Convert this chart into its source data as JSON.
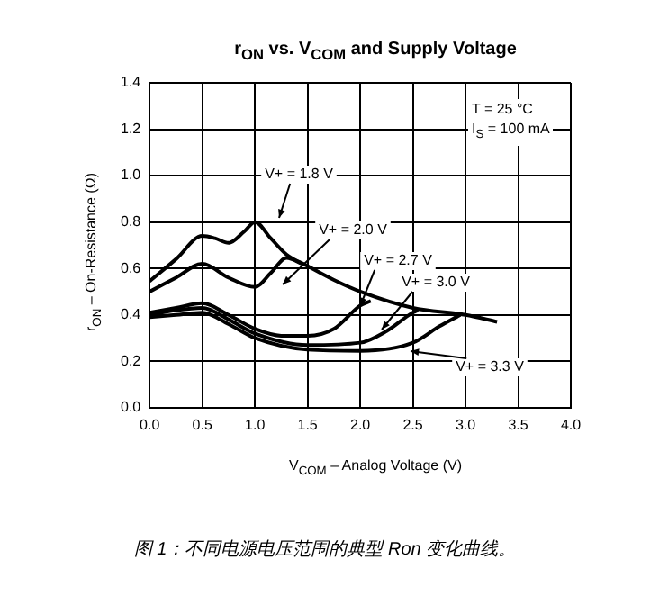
{
  "chart_data": {
    "type": "line",
    "title": "r$_{ON}$ vs. V$_{COM}$ and Supply Voltage",
    "xlabel": "V$_{COM}$ – Analog Voltage (V)",
    "ylabel": "r$_{ON}$ – On-Resistance (Ω)",
    "xlim": [
      0,
      4
    ],
    "xticks": [
      {
        "value": 0,
        "label": "0.0"
      },
      0.5,
      {
        "value": 1,
        "label": "1.0"
      },
      1.5,
      {
        "value": 2,
        "label": "2.0"
      },
      2.5,
      {
        "value": 3,
        "label": "3.0"
      },
      3.5,
      {
        "value": 4,
        "label": "4.0"
      }
    ],
    "ylim": [
      0,
      1.4
    ],
    "yticks": [
      {
        "value": 0,
        "label": "0.0"
      },
      0.2,
      0.4,
      0.6,
      0.8,
      {
        "value": 1,
        "label": "1.0"
      },
      1.2,
      1.4
    ],
    "grid": true,
    "legend": false,
    "marker": "none",
    "line_style": "solid",
    "annotations": [
      "T = 25 °C",
      "I$_{S}$ = 100 mA",
      "图 1：不同电源电压范围的典型 Ron 变化曲线。"
    ],
    "series": [
      {
        "name": "V+ = 1.8 V",
        "color": "#000000",
        "x": [
          0,
          0.25,
          0.5,
          0.62,
          0.75,
          0.9,
          1.0,
          1.15,
          1.3,
          1.5,
          1.75,
          2.0,
          2.5,
          3.0,
          3.3
        ],
        "values": [
          0.545,
          0.64,
          0.74,
          0.73,
          0.71,
          0.76,
          0.8,
          0.73,
          0.66,
          0.61,
          0.55,
          0.5,
          0.43,
          0.4,
          0.37
        ]
      },
      {
        "name": "V+ = 2.0 V",
        "color": "#000000",
        "x": [
          0,
          0.25,
          0.5,
          0.75,
          1.0,
          1.15,
          1.3,
          1.45
        ],
        "values": [
          0.5,
          0.56,
          0.62,
          0.56,
          0.52,
          0.58,
          0.645,
          0.62
        ]
      },
      {
        "name": "V+ = 2.7 V",
        "color": "#000000",
        "x": [
          0,
          0.25,
          0.5,
          0.75,
          1.0,
          1.25,
          1.5,
          1.75,
          2.0,
          2.1
        ],
        "values": [
          0.41,
          0.43,
          0.45,
          0.4,
          0.34,
          0.31,
          0.31,
          0.34,
          0.44,
          0.46
        ]
      },
      {
        "name": "V+ = 3.0 V",
        "color": "#000000",
        "x": [
          0,
          0.25,
          0.5,
          0.75,
          1.0,
          1.5,
          2.0,
          2.25,
          2.5,
          2.55
        ],
        "values": [
          0.4,
          0.42,
          0.43,
          0.38,
          0.32,
          0.27,
          0.28,
          0.33,
          0.41,
          0.42
        ]
      },
      {
        "name": "V+ = 3.3 V",
        "color": "#000000",
        "x": [
          0,
          0.25,
          0.5,
          0.75,
          1.0,
          1.5,
          2.0,
          2.5,
          2.75,
          2.95
        ],
        "values": [
          0.39,
          0.4,
          0.41,
          0.36,
          0.3,
          0.25,
          0.245,
          0.28,
          0.35,
          0.4
        ]
      }
    ]
  }
}
